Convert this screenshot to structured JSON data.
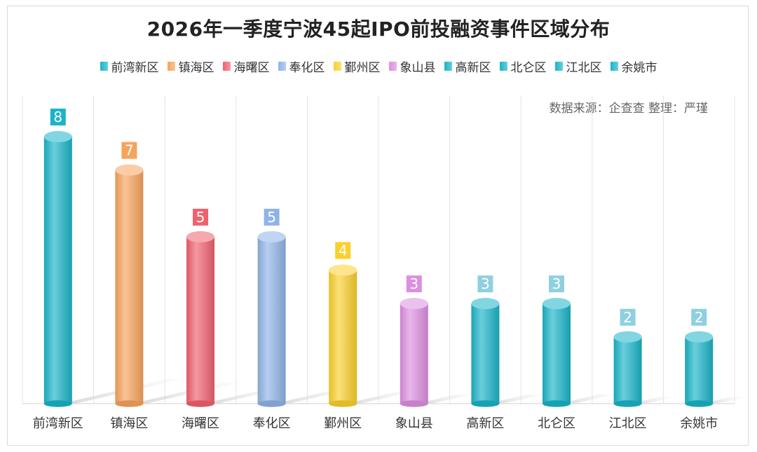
{
  "chart_data": {
    "type": "bar",
    "title": "2026年一季度宁波45起IPO前投融资事件区域分布",
    "source_note": "数据来源：企查查 整理：严瑾",
    "categories": [
      "前湾新区",
      "镇海区",
      "海曙区",
      "奉化区",
      "鄞州区",
      "象山县",
      "高新区",
      "北仑区",
      "江北区",
      "余姚市"
    ],
    "values": [
      8,
      7,
      5,
      5,
      4,
      3,
      3,
      3,
      2,
      2
    ],
    "value_labels": [
      "8",
      "7",
      "5",
      "5",
      "4",
      "3",
      "3",
      "3",
      "2",
      "2"
    ],
    "colors": [
      "#1ab4c8",
      "#f7a35c",
      "#f0616e",
      "#8fb3e8",
      "#fad02c",
      "#dd8ee0",
      "#1ab4c8",
      "#1ab4c8",
      "#1ab4c8",
      "#1ab4c8"
    ],
    "label_bg_colors": [
      "#1ab4c8",
      "#f7a35c",
      "#f0616e",
      "#8fb3e8",
      "#fad02c",
      "#dd8ee0",
      "#8fd0e0",
      "#8fd0e0",
      "#8fd0e0",
      "#8fd0e0"
    ],
    "ylim": [
      0,
      8.8
    ],
    "legend_position": "top",
    "grid": "vertical"
  }
}
